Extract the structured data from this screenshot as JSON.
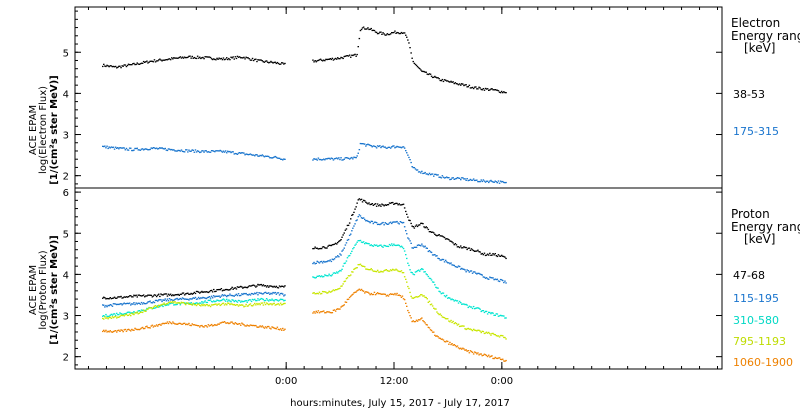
{
  "chart_data": [
    {
      "type": "scatter",
      "ylabel_lines": [
        "ACE EPAM",
        "log(Electron Flux)",
        "[1/(cm²s ster MeV)]"
      ],
      "ylim": [
        1.7,
        6.1
      ],
      "yticks": [
        "2",
        "3",
        "4",
        "5"
      ],
      "legend_title_lines": [
        "Electron",
        "Energy ranges",
        "[keV]"
      ],
      "gaps": [
        [
          -0.2,
          2.8
        ]
      ],
      "series": [
        {
          "name": "38-53",
          "color": "#000000",
          "x": [
            -20.5,
            -19,
            -17,
            -15,
            -13,
            -11,
            -9,
            -7,
            -5,
            -3,
            -1,
            -0.3,
            3,
            5,
            6,
            7.8,
            8.2,
            9,
            10,
            11,
            12,
            13,
            13.5,
            14,
            15,
            16,
            17,
            18,
            19,
            20,
            21,
            22,
            23,
            24,
            24.5
          ],
          "y": [
            4.7,
            4.65,
            4.72,
            4.8,
            4.85,
            4.9,
            4.88,
            4.85,
            4.9,
            4.8,
            4.75,
            4.72,
            4.8,
            4.85,
            4.88,
            4.95,
            5.6,
            5.6,
            5.5,
            5.45,
            5.5,
            5.5,
            5.3,
            4.8,
            4.55,
            4.45,
            4.35,
            4.3,
            4.25,
            4.2,
            4.15,
            4.12,
            4.1,
            4.05,
            4.05
          ]
        },
        {
          "name": "175-315",
          "color": "#1874CD",
          "x": [
            -20.5,
            -19,
            -17,
            -15,
            -13,
            -11,
            -9,
            -7,
            -5,
            -3,
            -1,
            -0.3,
            3,
            5,
            6,
            7.8,
            8.2,
            9,
            10,
            11,
            12,
            13,
            13.5,
            14,
            15,
            16,
            17,
            18,
            19,
            20,
            21,
            22,
            23,
            24,
            24.5
          ],
          "y": [
            2.72,
            2.68,
            2.65,
            2.68,
            2.65,
            2.62,
            2.6,
            2.6,
            2.55,
            2.5,
            2.45,
            2.42,
            2.42,
            2.42,
            2.42,
            2.45,
            2.8,
            2.75,
            2.72,
            2.7,
            2.72,
            2.72,
            2.5,
            2.2,
            2.1,
            2.05,
            2.0,
            1.95,
            1.95,
            1.92,
            1.9,
            1.88,
            1.88,
            1.85,
            1.82
          ]
        }
      ]
    },
    {
      "type": "scatter",
      "ylabel_lines": [
        "ACE EPAM",
        "log(Proton Flux)",
        "[1/(cm²s ster MeV)]"
      ],
      "ylim": [
        1.7,
        6.1
      ],
      "yticks": [
        "2",
        "3",
        "4",
        "5",
        "6"
      ],
      "legend_title_lines": [
        "Proton",
        "Energy ranges",
        "[keV]"
      ],
      "gaps": [
        [
          -0.2,
          2.8
        ]
      ],
      "series": [
        {
          "name": "47-68",
          "color": "#000000",
          "x": [
            -20.5,
            -19,
            -17,
            -15,
            -13,
            -11,
            -9,
            -7,
            -5,
            -3,
            -1,
            -0.3,
            3,
            5,
            6,
            7,
            8,
            9,
            10,
            11,
            12,
            13,
            13.5,
            14,
            15,
            16,
            17,
            18,
            19,
            20,
            21,
            22,
            23,
            24,
            24.5
          ],
          "y": [
            3.45,
            3.45,
            3.48,
            3.5,
            3.52,
            3.55,
            3.6,
            3.65,
            3.7,
            3.75,
            3.72,
            3.7,
            4.65,
            4.7,
            4.85,
            5.3,
            5.85,
            5.75,
            5.7,
            5.7,
            5.75,
            5.7,
            5.4,
            5.15,
            5.25,
            5.05,
            4.95,
            4.85,
            4.7,
            4.65,
            4.6,
            4.5,
            4.5,
            4.45,
            4.4
          ]
        },
        {
          "name": "115-195",
          "color": "#1874CD",
          "x": [
            -20.5,
            -19,
            -17,
            -15,
            -13,
            -11,
            -9,
            -7,
            -5,
            -3,
            -1,
            -0.3,
            3,
            5,
            6,
            7,
            8,
            9,
            10,
            11,
            12,
            13,
            13.5,
            14,
            15,
            16,
            17,
            18,
            19,
            20,
            21,
            22,
            23,
            24,
            24.5
          ],
          "y": [
            3.25,
            3.28,
            3.3,
            3.35,
            3.4,
            3.42,
            3.45,
            3.5,
            3.52,
            3.55,
            3.55,
            3.52,
            4.3,
            4.35,
            4.5,
            4.95,
            5.45,
            5.3,
            5.25,
            5.25,
            5.3,
            5.25,
            4.9,
            4.65,
            4.75,
            4.55,
            4.4,
            4.3,
            4.2,
            4.1,
            4.05,
            3.95,
            3.9,
            3.85,
            3.8
          ]
        },
        {
          "name": "310-580",
          "color": "#00E5D0",
          "x": [
            -20.5,
            -19,
            -17,
            -15,
            -13,
            -11,
            -9,
            -7,
            -5,
            -3,
            -1,
            -0.3,
            3,
            5,
            6,
            7,
            8,
            9,
            10,
            11,
            12,
            13,
            13.5,
            14,
            15,
            16,
            17,
            18,
            19,
            20,
            21,
            22,
            23,
            24,
            24.5
          ],
          "y": [
            3.0,
            3.05,
            3.1,
            3.2,
            3.3,
            3.3,
            3.35,
            3.4,
            3.35,
            3.4,
            3.4,
            3.38,
            3.95,
            4.0,
            4.1,
            4.5,
            4.85,
            4.75,
            4.7,
            4.7,
            4.75,
            4.65,
            4.25,
            4.0,
            4.15,
            3.9,
            3.6,
            3.45,
            3.35,
            3.25,
            3.2,
            3.1,
            3.05,
            3.0,
            2.95
          ]
        },
        {
          "name": "795-1193",
          "color": "#C8E600",
          "x": [
            -20.5,
            -19,
            -17,
            -15,
            -13,
            -11,
            -9,
            -7,
            -5,
            -3,
            -1,
            -0.3,
            3,
            5,
            6,
            7,
            8,
            9,
            10,
            11,
            12,
            13,
            13.5,
            14,
            15,
            16,
            17,
            18,
            19,
            20,
            21,
            22,
            23,
            24,
            24.5
          ],
          "y": [
            2.95,
            2.98,
            3.05,
            3.2,
            3.35,
            3.3,
            3.25,
            3.3,
            3.25,
            3.3,
            3.3,
            3.28,
            3.55,
            3.6,
            3.7,
            4.0,
            4.25,
            4.15,
            4.1,
            4.1,
            4.15,
            4.05,
            3.7,
            3.4,
            3.55,
            3.3,
            3.05,
            2.9,
            2.8,
            2.7,
            2.65,
            2.6,
            2.55,
            2.5,
            2.45
          ]
        },
        {
          "name": "1060-1900",
          "color": "#EE8100",
          "x": [
            -20.5,
            -19,
            -17,
            -15,
            -13,
            -11,
            -9,
            -7,
            -5,
            -3,
            -1,
            -0.3,
            3,
            5,
            6,
            7,
            8,
            9,
            10,
            11,
            12,
            13,
            13.5,
            14,
            15,
            16,
            17,
            18,
            19,
            20,
            21,
            22,
            23,
            24,
            24.5
          ],
          "y": [
            2.65,
            2.62,
            2.68,
            2.75,
            2.85,
            2.8,
            2.75,
            2.85,
            2.8,
            2.75,
            2.7,
            2.68,
            3.1,
            3.1,
            3.2,
            3.45,
            3.65,
            3.55,
            3.55,
            3.5,
            3.55,
            3.45,
            3.1,
            2.85,
            2.95,
            2.65,
            2.45,
            2.35,
            2.25,
            2.15,
            2.1,
            2.05,
            2.0,
            1.95,
            1.9
          ]
        }
      ]
    }
  ],
  "x_axis": {
    "label": "hours:minutes, July 15, 2017 - July 17, 2017",
    "range_hours": [
      -23.5,
      48.5
    ],
    "ticks": [
      {
        "hours": 0,
        "label": "0:00"
      },
      {
        "hours": 12,
        "label": "12:00"
      },
      {
        "hours": 24,
        "label": "0:00"
      }
    ],
    "minor_step_hours": 2
  }
}
